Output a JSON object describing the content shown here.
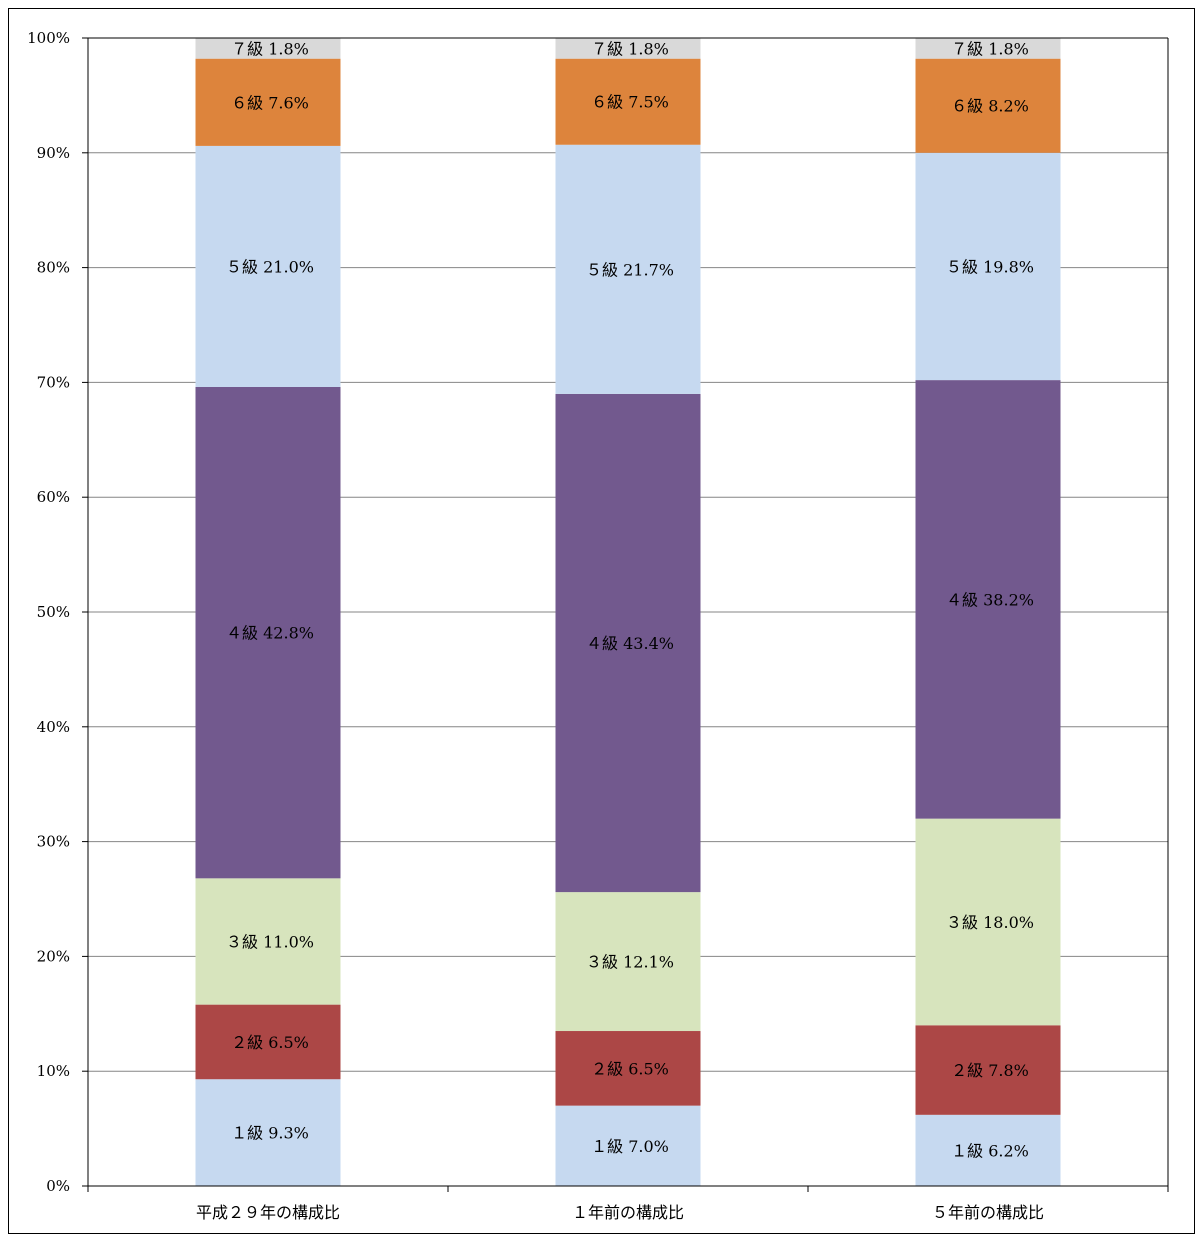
{
  "chart_data": {
    "type": "bar",
    "stacked": true,
    "percent": true,
    "categories": [
      "平成２９年の構成比",
      "１年前の構成比",
      "５年前の構成比"
    ],
    "series": [
      {
        "name": "１級",
        "values": [
          9.3,
          7.0,
          6.2
        ],
        "labels": [
          "１級 9.3%",
          "１級 7.0%",
          "１級 6.2%"
        ],
        "color": "#C6D9F0"
      },
      {
        "name": "２級",
        "values": [
          6.5,
          6.5,
          7.8
        ],
        "labels": [
          "２級 6.5%",
          "２級 6.5%",
          "２級 7.8%"
        ],
        "color": "#AC4746"
      },
      {
        "name": "３級",
        "values": [
          11.0,
          12.1,
          18.0
        ],
        "labels": [
          "３級 11.0%",
          "３級 12.1%",
          "３級 18.0%"
        ],
        "color": "#D7E4BD"
      },
      {
        "name": "４級",
        "values": [
          42.8,
          43.4,
          38.2
        ],
        "labels": [
          "４級 42.8%",
          "４級 43.4%",
          "４級 38.2%"
        ],
        "color": "#72598E"
      },
      {
        "name": "５級",
        "values": [
          21.0,
          21.7,
          19.8
        ],
        "labels": [
          "５級 21.0%",
          "５級 21.7%",
          "５級 19.8%"
        ],
        "color": "#C6D9F0"
      },
      {
        "name": "６級",
        "values": [
          7.6,
          7.5,
          8.2
        ],
        "labels": [
          "６級 7.6%",
          "６級 7.5%",
          "６級 8.2%"
        ],
        "color": "#DD843C"
      },
      {
        "name": "７級",
        "values": [
          1.8,
          1.8,
          1.8
        ],
        "labels": [
          "７級 1.8%",
          "７級 1.8%",
          "７級 1.8%"
        ],
        "color": "#D9D9D9"
      }
    ],
    "yticks": [
      "0%",
      "10%",
      "20%",
      "30%",
      "40%",
      "50%",
      "60%",
      "70%",
      "80%",
      "90%",
      "100%"
    ],
    "ylim": [
      0,
      100
    ],
    "grid": true,
    "legend": "none"
  }
}
